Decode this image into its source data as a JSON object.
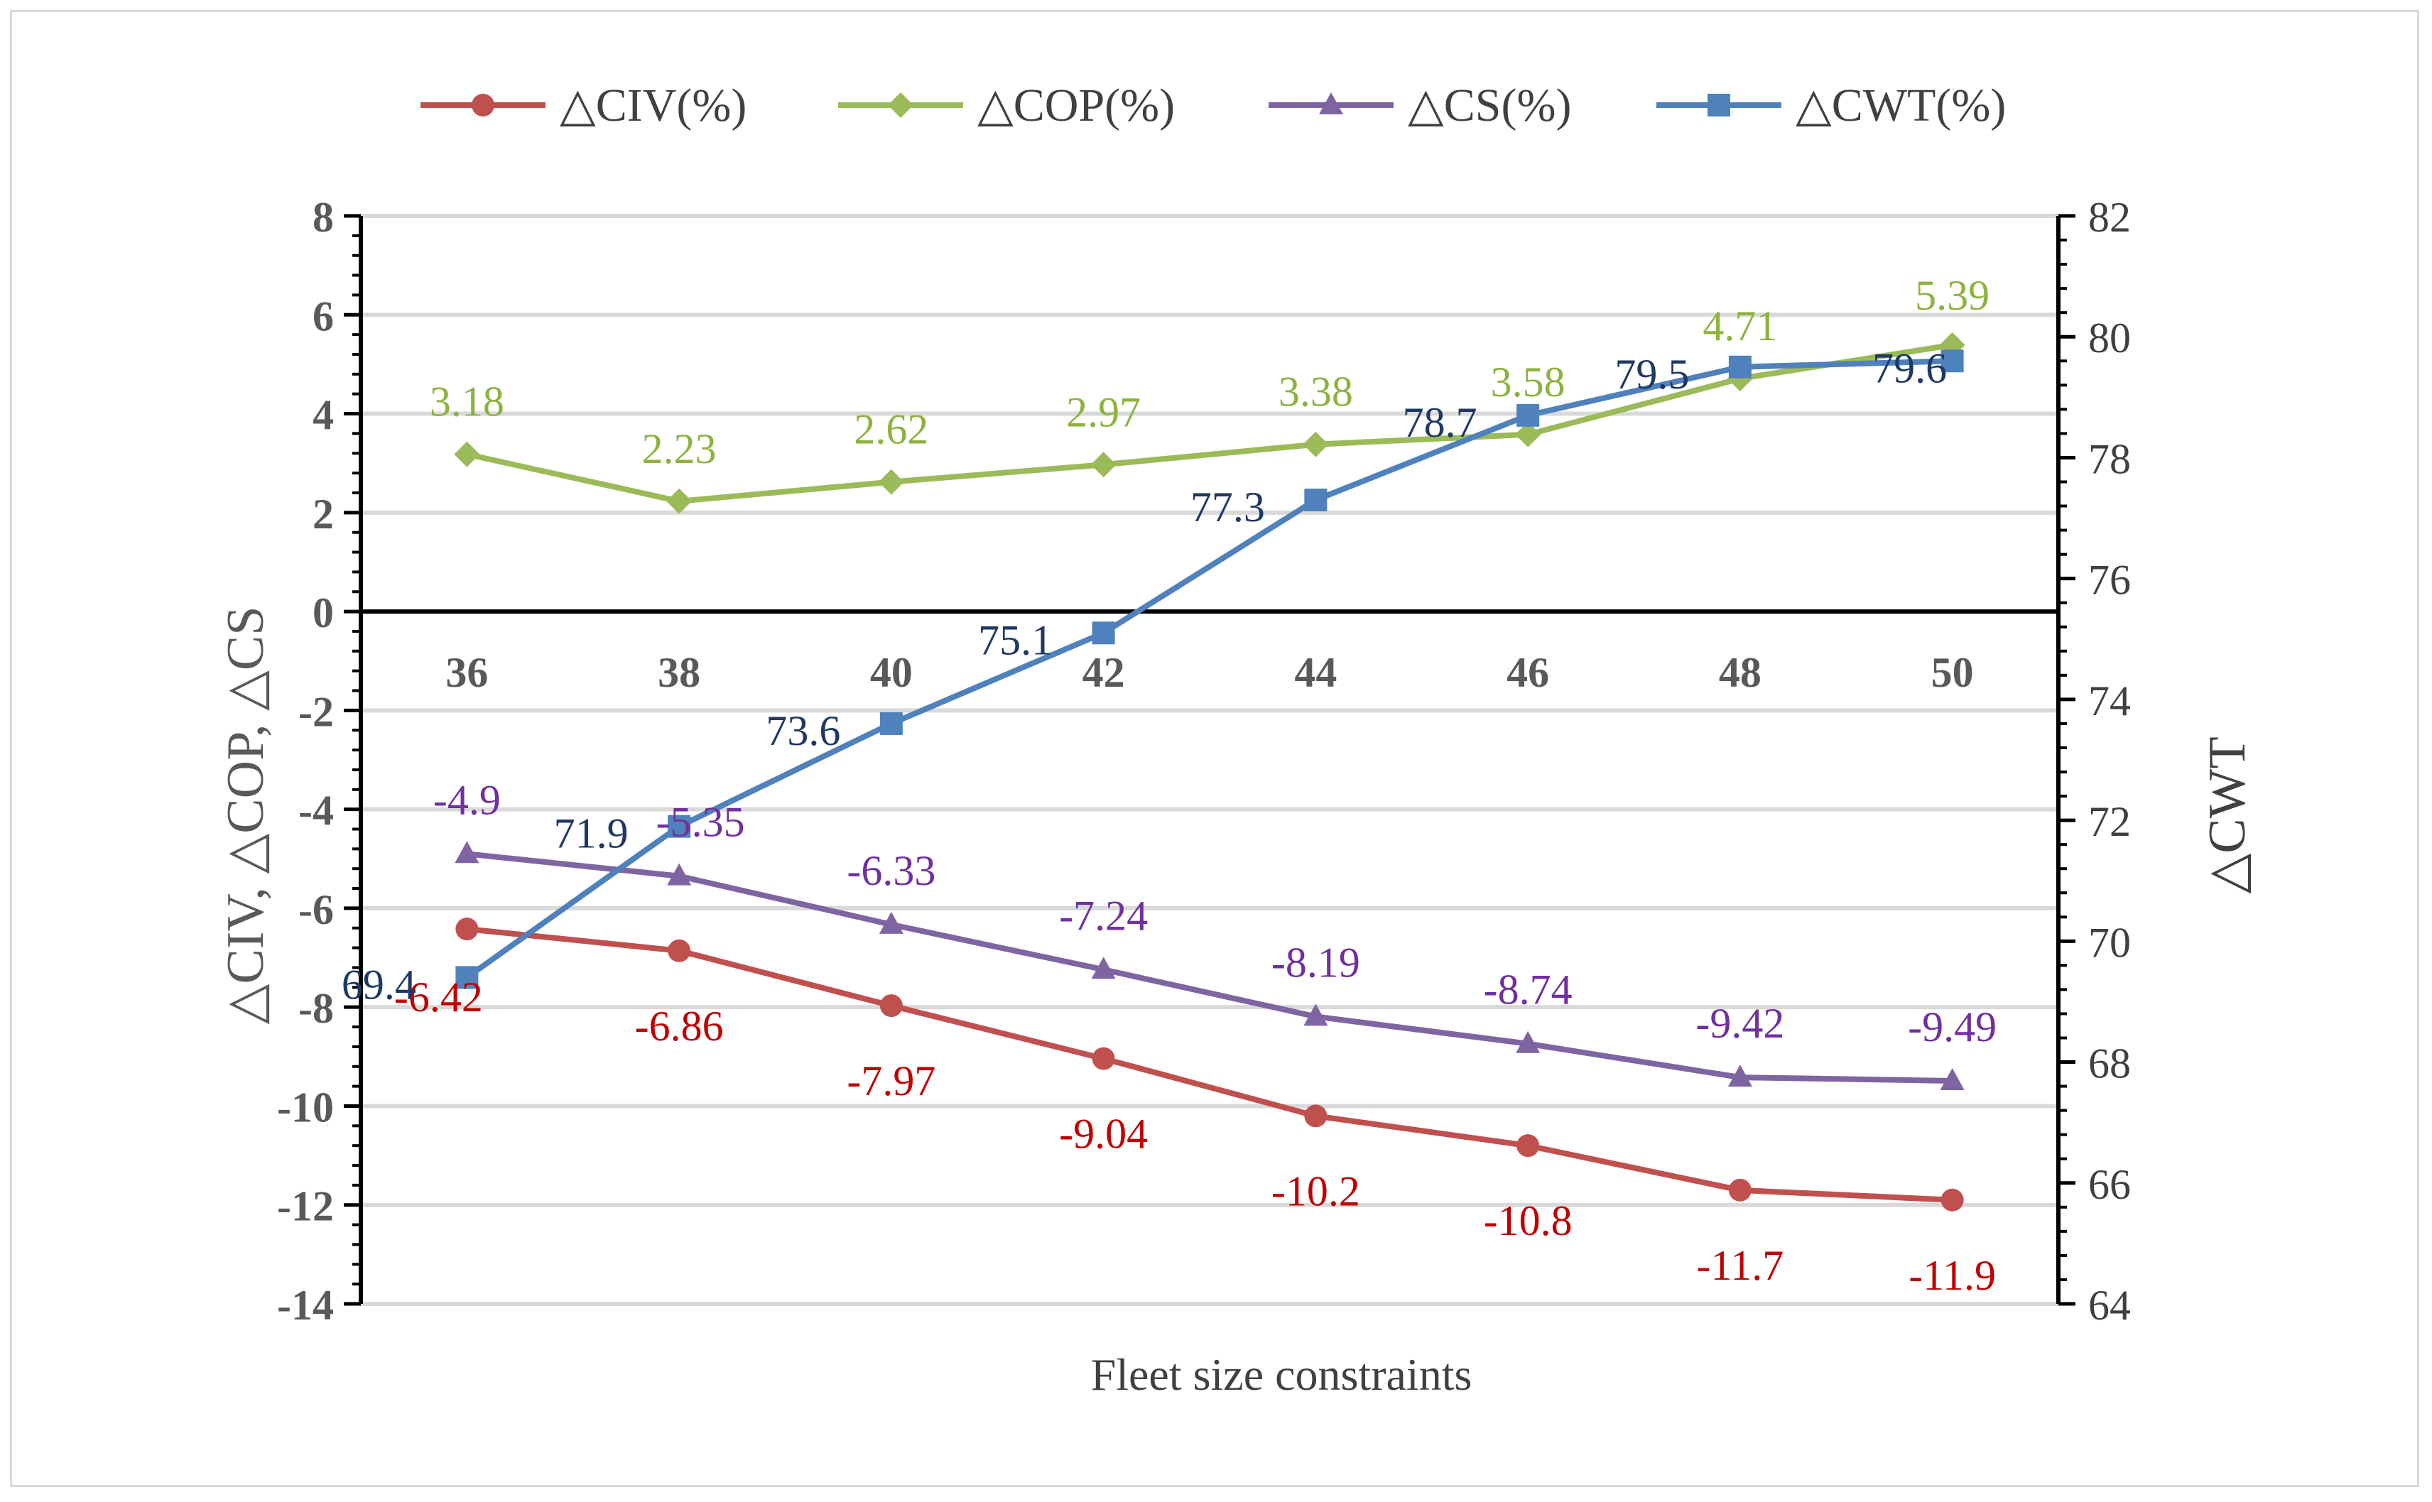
{
  "chart_data": {
    "type": "line",
    "xlabel": "Fleet size constraints",
    "ylabel_left": "△CIV, △COP, △CS",
    "ylabel_right": "△CWT",
    "categories": [
      "36",
      "38",
      "40",
      "42",
      "44",
      "46",
      "48",
      "50"
    ],
    "left_axis": {
      "min": -14,
      "max": 8,
      "step": 2,
      "ticks": [
        "8",
        "6",
        "4",
        "2",
        "0",
        "-2",
        "-4",
        "-6",
        "-8",
        "-10",
        "-12",
        "-14"
      ]
    },
    "right_axis": {
      "min": 64,
      "max": 82,
      "step": 2,
      "ticks": [
        "82",
        "80",
        "78",
        "76",
        "74",
        "72",
        "70",
        "68",
        "66",
        "64"
      ]
    },
    "series": [
      {
        "name": "△CIV(%)",
        "axis": "left",
        "color": "#c0504d",
        "label_color": "#c00000",
        "marker": "circle",
        "values": [
          -6.42,
          -6.86,
          -7.97,
          -9.04,
          -10.2,
          -10.8,
          -11.7,
          -11.9
        ],
        "labels": [
          "-6.42",
          "-6.86",
          "-7.97",
          "-9.04",
          "-10.2",
          "-10.8",
          "-11.7",
          "-11.9"
        ]
      },
      {
        "name": "△COP(%)",
        "axis": "left",
        "color": "#9bbb59",
        "label_color": "#8db33f",
        "marker": "diamond",
        "values": [
          3.18,
          2.23,
          2.62,
          2.97,
          3.38,
          3.58,
          4.71,
          5.39
        ],
        "labels": [
          "3.18",
          "2.23",
          "2.62",
          "2.97",
          "3.38",
          "3.58",
          "4.71",
          "5.39"
        ]
      },
      {
        "name": "△CS(%)",
        "axis": "left",
        "color": "#8064a2",
        "label_color": "#7030a0",
        "marker": "triangle",
        "values": [
          -4.9,
          -5.35,
          -6.33,
          -7.24,
          -8.19,
          -8.74,
          -9.42,
          -9.49
        ],
        "labels": [
          "-4.9",
          "-5.35",
          "-6.33",
          "-7.24",
          "-8.19",
          "-8.74",
          "-9.42",
          "-9.49"
        ]
      },
      {
        "name": "△CWT(%)",
        "axis": "right",
        "color": "#4f81bd",
        "label_color": "#1f3864",
        "marker": "square",
        "values": [
          69.4,
          71.9,
          73.6,
          75.1,
          77.3,
          78.7,
          79.5,
          79.6
        ],
        "labels": [
          "69.4",
          "71.9",
          "73.6",
          "75.1",
          "77.3",
          "78.7",
          "79.5",
          "79.6"
        ]
      }
    ]
  }
}
